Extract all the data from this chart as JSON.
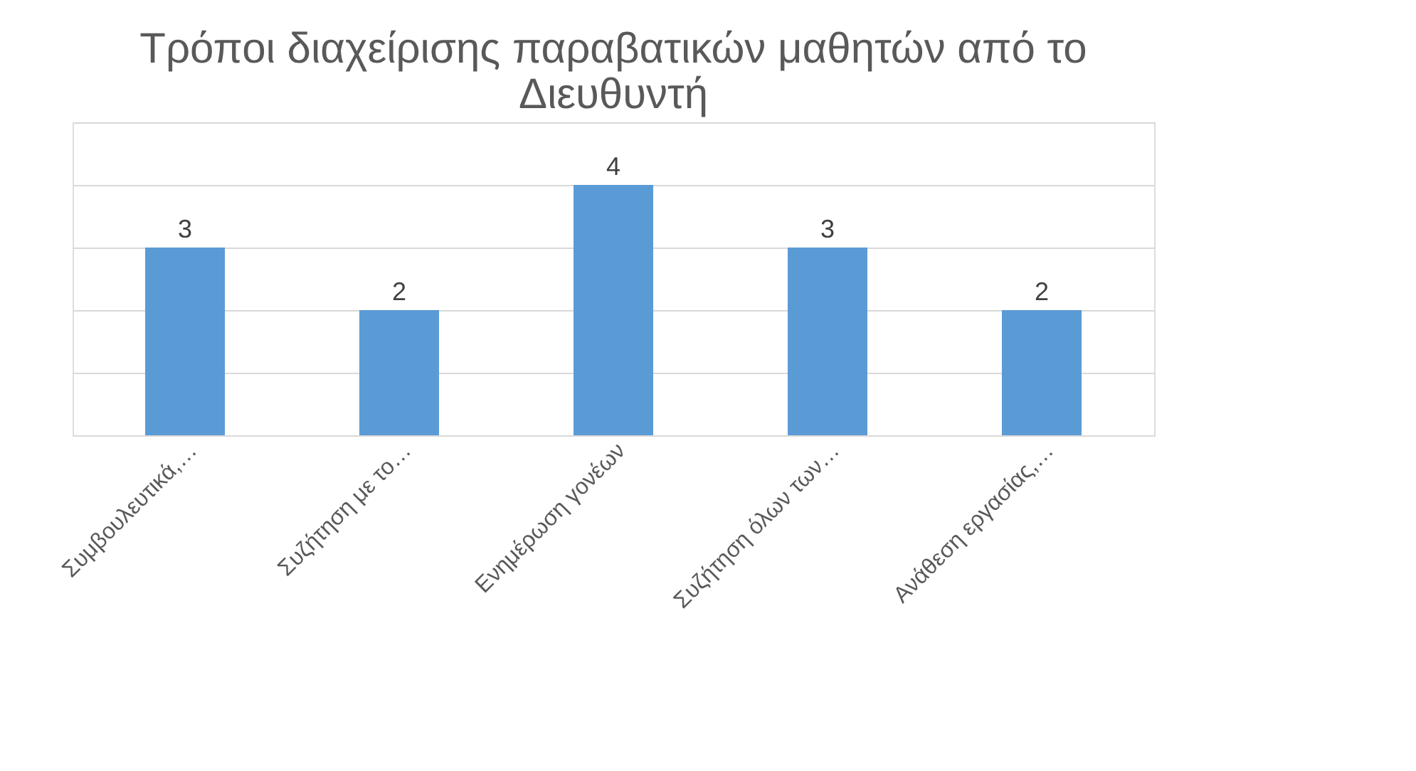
{
  "chart_data": {
    "type": "bar",
    "title": "Τρόποι διαχείρισης παραβατικών μαθητών από το Διευθυντή",
    "categories": [
      "Συμβουλευτικά,…",
      "Συζήτηση με το…",
      "Ενημέρωση γονέων",
      "Συζήτηση όλων των…",
      "Ανάθεση εργασίας,…"
    ],
    "values": [
      3,
      2,
      4,
      3,
      2
    ],
    "color": "#5b9bd5",
    "ylim": [
      0,
      5
    ],
    "yticks": [
      0,
      1,
      2,
      3,
      4,
      5
    ],
    "grid": "y",
    "tick_labels": "x",
    "data_labels": true
  }
}
